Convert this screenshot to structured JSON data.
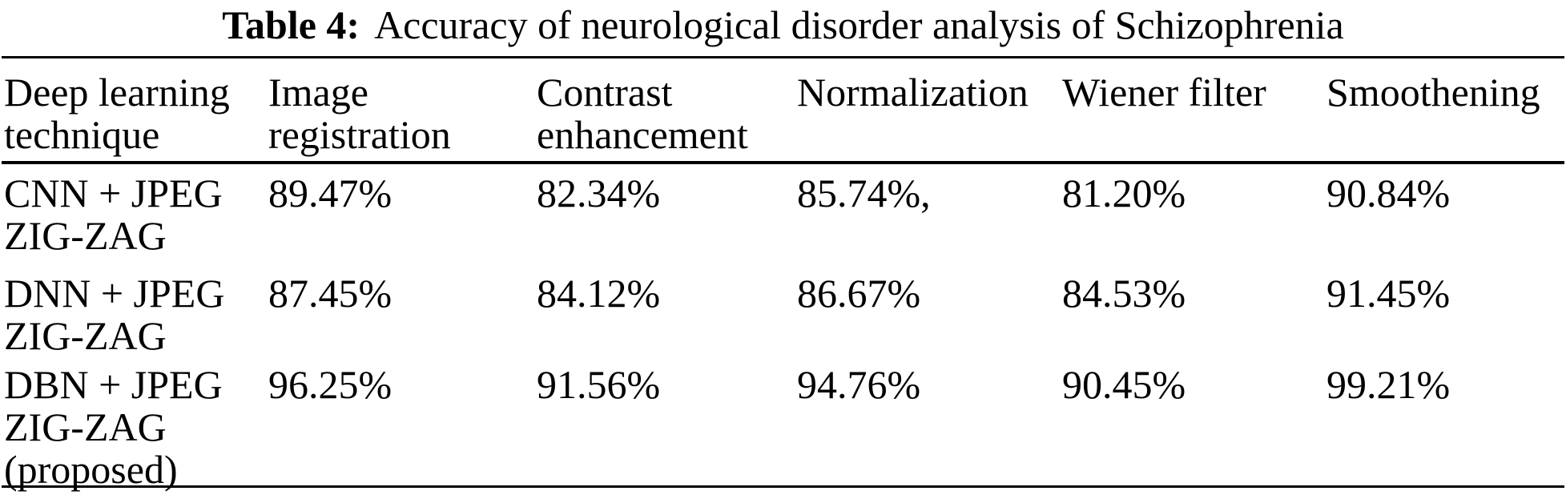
{
  "caption": {
    "label": "Table 4:",
    "text": "Accuracy of neurological disorder analysis of Schizophrenia"
  },
  "table": {
    "columns": [
      "Deep learning\ntechnique",
      "Image\nregistration",
      "Contrast\nenhancement",
      "Normalization",
      "Wiener filter",
      "Smoothening"
    ],
    "rows": [
      {
        "technique": "CNN + JPEG\nZIG-ZAG",
        "values": [
          "89.47%",
          "82.34%",
          "85.74%,",
          "81.20%",
          "90.84%"
        ]
      },
      {
        "technique": "DNN + JPEG\nZIG-ZAG",
        "values": [
          "87.45%",
          "84.12%",
          "86.67%",
          "84.53%",
          "91.45%"
        ]
      },
      {
        "technique": "DBN + JPEG\nZIG-ZAG\n(proposed)",
        "values": [
          "96.25%",
          "91.56%",
          "94.76%",
          "90.45%",
          "99.21%"
        ]
      }
    ]
  },
  "colors": {
    "text": "#000000",
    "background": "#ffffff",
    "rule": "#000000"
  }
}
